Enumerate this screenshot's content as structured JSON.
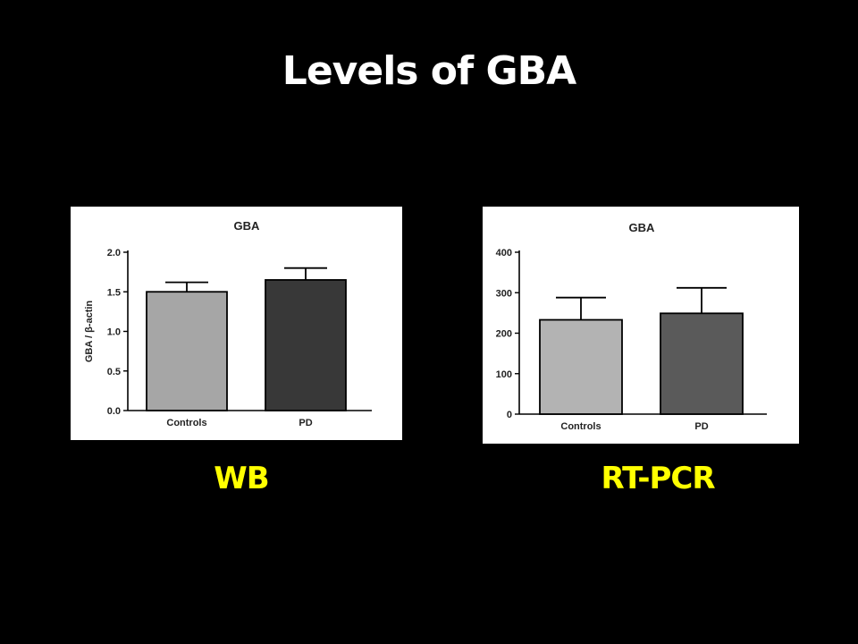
{
  "slide": {
    "title": "Levels of GBA"
  },
  "captions": {
    "wb": "WB",
    "pcr": "RT-PCR"
  },
  "chart_data": [
    {
      "type": "bar",
      "title": "GBA",
      "xlabel": "",
      "ylabel": "GBA / β-actin",
      "categories": [
        "Controls",
        "PD"
      ],
      "values": [
        1.5,
        1.65
      ],
      "errors": [
        0.12,
        0.15
      ],
      "ylim": [
        0,
        2.0
      ],
      "yticks": [
        0.0,
        0.5,
        1.0,
        1.5,
        2.0
      ],
      "ytick_labels": [
        "0.0",
        "0.5",
        "1.0",
        "1.5",
        "2.0"
      ],
      "bar_colors": [
        "#a6a6a6",
        "#383838"
      ],
      "grid": false
    },
    {
      "type": "bar",
      "title": "GBA",
      "xlabel": "",
      "ylabel": "",
      "categories": [
        "Controls",
        "PD"
      ],
      "values": [
        233,
        249
      ],
      "errors": [
        55,
        63
      ],
      "ylim": [
        0,
        400
      ],
      "yticks": [
        0,
        100,
        200,
        300,
        400
      ],
      "ytick_labels": [
        "0",
        "100",
        "200",
        "300",
        "400"
      ],
      "bar_colors": [
        "#b3b3b3",
        "#5a5a5a"
      ],
      "grid": false
    }
  ]
}
